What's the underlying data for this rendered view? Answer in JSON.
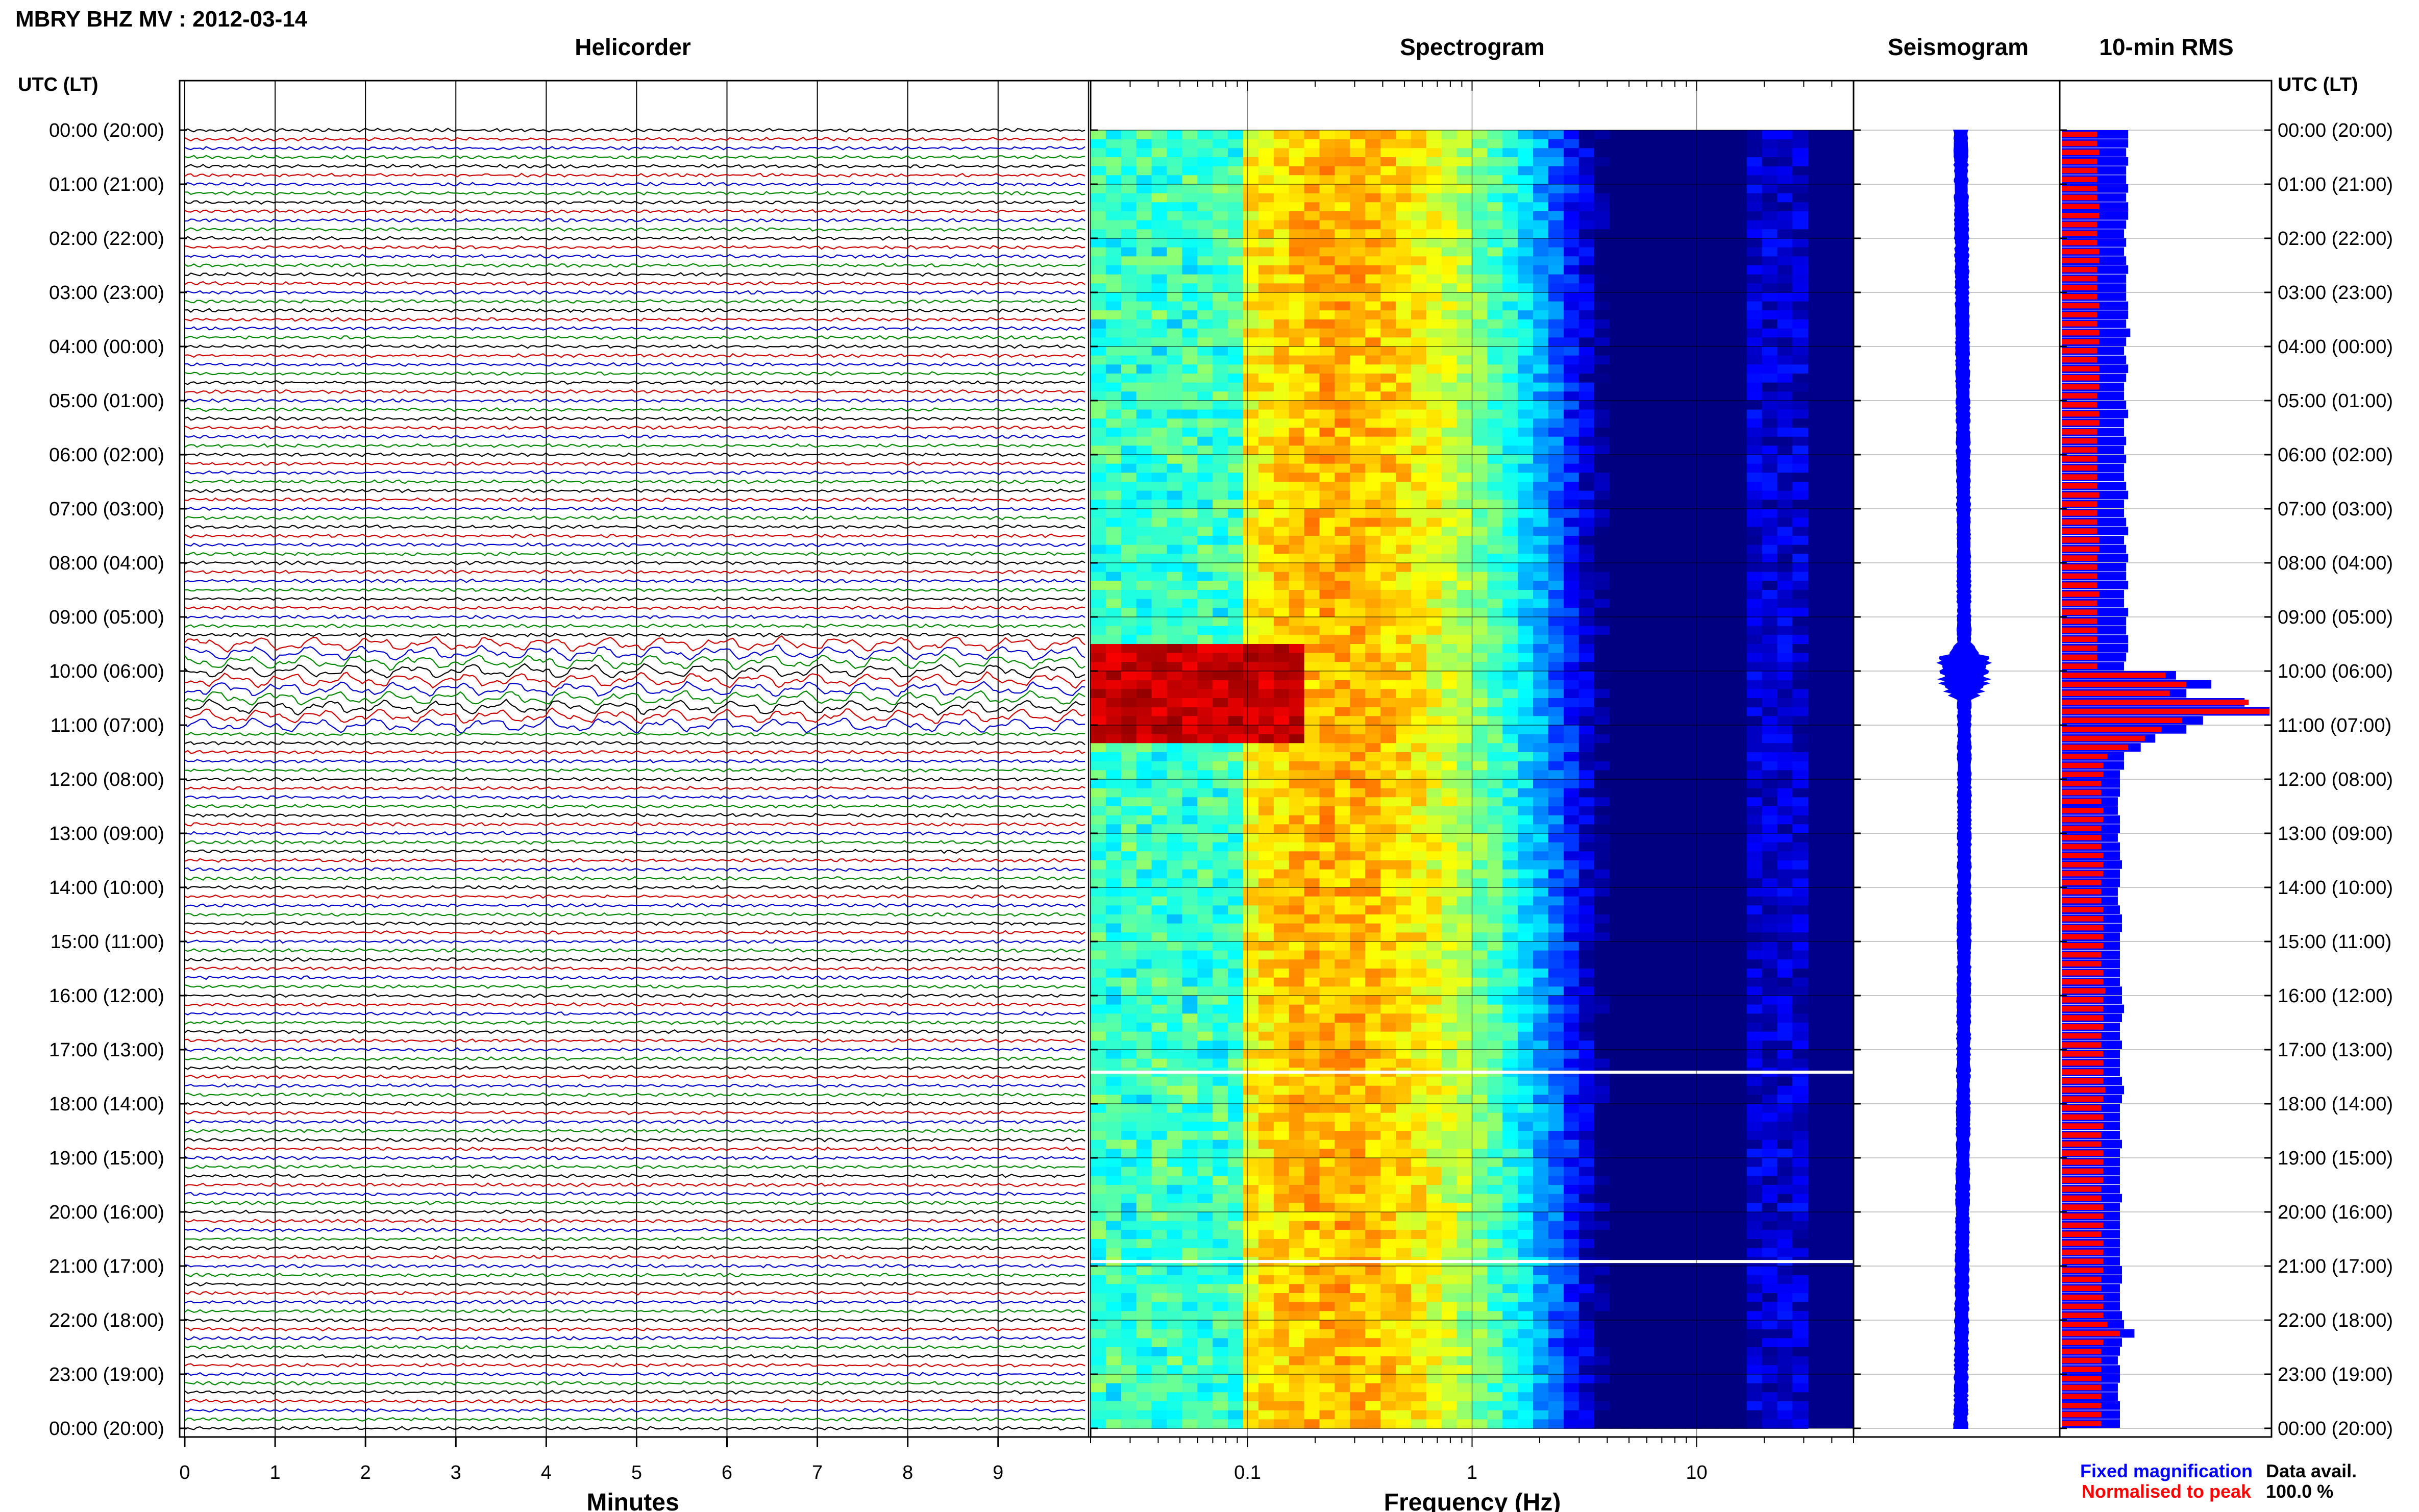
{
  "header": {
    "title": "MBRY BHZ MV : 2012-03-14"
  },
  "panels": {
    "helicorder": "Helicorder",
    "spectrogram": "Spectrogram",
    "seismogram": "Seismogram",
    "rms": "10-min RMS"
  },
  "axes": {
    "time_label": "UTC (LT)",
    "minutes_label": "Minutes",
    "frequency_label": "Frequency (Hz)"
  },
  "legend": {
    "fixed": "Fixed magnification",
    "normalised": "Normalised to peak",
    "fixed_color": "#0000ff",
    "normalised_color": "#ff0000"
  },
  "data_avail": {
    "label": "Data avail.",
    "value": "100.0 %"
  },
  "colors": {
    "trace_cycle": [
      "#000000",
      "#cc0000",
      "#0000cc",
      "#008800"
    ],
    "spectro_bg": "#00008b",
    "seismo": "#0000ff",
    "rms_fixed": "#0000ff",
    "rms_norm": "#ff0000"
  },
  "chart_data": [
    {
      "type": "line",
      "title": "Helicorder",
      "xlabel": "Minutes",
      "ylabel": "UTC (LT)",
      "x_ticks": [
        "0",
        "1",
        "2",
        "3",
        "4",
        "5",
        "6",
        "7",
        "8",
        "9"
      ],
      "xlim": [
        0,
        10
      ],
      "y_ticks": [
        "00:00 (20:00)",
        "01:00 (21:00)",
        "02:00 (22:00)",
        "03:00 (23:00)",
        "04:00 (00:00)",
        "05:00 (01:00)",
        "06:00 (02:00)",
        "07:00 (03:00)",
        "08:00 (04:00)",
        "09:00 (05:00)",
        "10:00 (06:00)",
        "11:00 (07:00)",
        "12:00 (08:00)",
        "13:00 (09:00)",
        "14:00 (10:00)",
        "15:00 (11:00)",
        "16:00 (12:00)",
        "17:00 (13:00)",
        "18:00 (14:00)",
        "19:00 (15:00)",
        "20:00 (16:00)",
        "21:00 (17:00)",
        "22:00 (18:00)",
        "23:00 (19:00)",
        "00:00 (20:00)"
      ],
      "lines_per_hour": 6,
      "active_period_utc": [
        "09:30",
        "11:00"
      ]
    },
    {
      "type": "heatmap",
      "title": "Spectrogram",
      "xlabel": "Frequency (Hz)",
      "x_scale": "log",
      "x_ticks": [
        "0.1",
        "1",
        "10"
      ],
      "xlim": [
        0.02,
        50
      ],
      "data_gaps_utc": [
        "17:25",
        "20:55"
      ],
      "strong_low_freq_event_utc": [
        "09:30",
        "11:15"
      ]
    },
    {
      "type": "line",
      "title": "Seismogram",
      "burst_utc": [
        "09:30",
        "10:30"
      ]
    },
    {
      "type": "bar",
      "title": "10-min RMS",
      "bins_per_hour": 6,
      "series": [
        {
          "name": "Fixed magnification",
          "values": [
            0.32,
            0.32,
            0.31,
            0.32,
            0.31,
            0.31,
            0.32,
            0.31,
            0.32,
            0.32,
            0.31,
            0.3,
            0.31,
            0.3,
            0.31,
            0.32,
            0.31,
            0.31,
            0.31,
            0.32,
            0.32,
            0.31,
            0.33,
            0.31,
            0.3,
            0.31,
            0.32,
            0.31,
            0.3,
            0.3,
            0.31,
            0.32,
            0.3,
            0.3,
            0.31,
            0.3,
            0.31,
            0.3,
            0.3,
            0.31,
            0.32,
            0.3,
            0.3,
            0.31,
            0.32,
            0.3,
            0.31,
            0.32,
            0.31,
            0.31,
            0.32,
            0.3,
            0.3,
            0.32,
            0.31,
            0.31,
            0.32,
            0.32,
            0.31,
            0.3,
            0.55,
            0.72,
            0.6,
            0.88,
            1.0,
            0.68,
            0.6,
            0.45,
            0.38,
            0.3,
            0.3,
            0.28,
            0.28,
            0.28,
            0.27,
            0.27,
            0.28,
            0.28,
            0.27,
            0.28,
            0.28,
            0.29,
            0.28,
            0.28,
            0.27,
            0.27,
            0.28,
            0.29,
            0.29,
            0.28,
            0.28,
            0.28,
            0.28,
            0.28,
            0.28,
            0.29,
            0.29,
            0.3,
            0.29,
            0.28,
            0.28,
            0.29,
            0.28,
            0.28,
            0.28,
            0.29,
            0.3,
            0.29,
            0.28,
            0.28,
            0.28,
            0.28,
            0.29,
            0.28,
            0.28,
            0.28,
            0.28,
            0.28,
            0.29,
            0.28,
            0.28,
            0.28,
            0.28,
            0.28,
            0.28,
            0.28,
            0.29,
            0.29,
            0.28,
            0.28,
            0.28,
            0.29,
            0.3,
            0.35,
            0.29,
            0.28,
            0.27,
            0.28,
            0.28,
            0.27,
            0.27,
            0.28,
            0.28,
            0.28
          ]
        },
        {
          "name": "Normalised to peak",
          "values": [
            0.17,
            0.17,
            0.18,
            0.17,
            0.17,
            0.17,
            0.17,
            0.17,
            0.18,
            0.18,
            0.17,
            0.17,
            0.17,
            0.18,
            0.18,
            0.17,
            0.17,
            0.17,
            0.17,
            0.18,
            0.17,
            0.17,
            0.18,
            0.18,
            0.17,
            0.17,
            0.18,
            0.18,
            0.18,
            0.17,
            0.17,
            0.18,
            0.18,
            0.17,
            0.17,
            0.17,
            0.17,
            0.17,
            0.17,
            0.17,
            0.18,
            0.17,
            0.17,
            0.17,
            0.17,
            0.18,
            0.18,
            0.17,
            0.17,
            0.17,
            0.17,
            0.18,
            0.17,
            0.17,
            0.17,
            0.17,
            0.17,
            0.17,
            0.17,
            0.17,
            0.5,
            0.6,
            0.52,
            0.9,
            1.0,
            0.58,
            0.48,
            0.4,
            0.32,
            0.22,
            0.2,
            0.2,
            0.19,
            0.19,
            0.19,
            0.2,
            0.2,
            0.19,
            0.19,
            0.19,
            0.2,
            0.2,
            0.2,
            0.19,
            0.19,
            0.19,
            0.2,
            0.2,
            0.2,
            0.2,
            0.2,
            0.19,
            0.19,
            0.2,
            0.2,
            0.21,
            0.2,
            0.2,
            0.2,
            0.2,
            0.19,
            0.19,
            0.2,
            0.2,
            0.2,
            0.2,
            0.21,
            0.2,
            0.19,
            0.2,
            0.2,
            0.19,
            0.19,
            0.2,
            0.2,
            0.2,
            0.2,
            0.19,
            0.19,
            0.2,
            0.2,
            0.2,
            0.19,
            0.2,
            0.2,
            0.2,
            0.2,
            0.19,
            0.19,
            0.2,
            0.2,
            0.2,
            0.22,
            0.28,
            0.2,
            0.19,
            0.19,
            0.19,
            0.19,
            0.19,
            0.19,
            0.19,
            0.19,
            0.19
          ]
        }
      ]
    }
  ]
}
